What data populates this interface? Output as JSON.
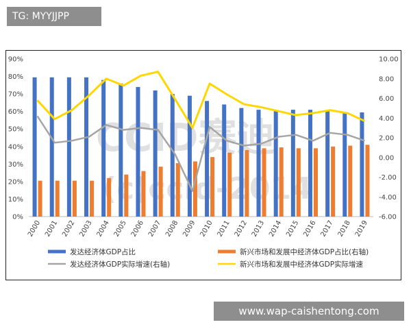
{
  "tags": {
    "top": "TG: MYYJJPP",
    "bottom": "www.wap-caishentong.com"
  },
  "watermark": [
    "CCID赛迪",
    "(c)ccid-2014"
  ],
  "chart_data": {
    "type": "bar",
    "categories": [
      "2000",
      "2001",
      "2002",
      "2003",
      "2004",
      "2005",
      "2006",
      "2007",
      "2008",
      "2009",
      "2010",
      "2011",
      "2012",
      "2013",
      "2014",
      "2015",
      "2016",
      "2017",
      "2018",
      "2019"
    ],
    "left_axis": {
      "min": 0,
      "max": 90,
      "step": 10,
      "format": "percent"
    },
    "right_axis": {
      "min": -6,
      "max": 10,
      "step": 2,
      "format": "fixed2"
    },
    "series": [
      {
        "name": "发达经济体GDP占比",
        "type": "bar",
        "axis": "left",
        "color": "#4472c4",
        "values": [
          79.5,
          79.5,
          79.5,
          79.5,
          78,
          76,
          74,
          72,
          70,
          69,
          66,
          64,
          62,
          61,
          60.5,
          61,
          61,
          60.5,
          59.5,
          59.5
        ]
      },
      {
        "name": "新兴市场和发展中经济体GDP占比(右轴)",
        "type": "bar",
        "axis": "left",
        "color": "#ed7d31",
        "values": [
          20.5,
          20.5,
          20.5,
          20.5,
          22,
          24,
          26,
          28.5,
          30.5,
          31.5,
          34,
          36.5,
          38,
          39,
          39.5,
          39,
          39,
          40,
          40.5,
          41
        ]
      },
      {
        "name": "发达经济体GDP实际增速(右轴)",
        "type": "line",
        "axis": "right",
        "color": "#a5a5a5",
        "values": [
          4.2,
          1.5,
          1.7,
          2.1,
          3.3,
          2.8,
          3.0,
          2.8,
          0.3,
          -3.4,
          3.1,
          1.7,
          1.2,
          1.4,
          2.1,
          2.3,
          1.7,
          2.5,
          2.3,
          1.7
        ]
      },
      {
        "name": "新兴市场和发展中经济体GDP实际增速",
        "type": "line",
        "axis": "right",
        "color": "#ffd700",
        "values": [
          5.8,
          3.9,
          4.8,
          6.3,
          8.0,
          7.3,
          8.3,
          8.7,
          5.9,
          3.0,
          7.5,
          6.4,
          5.4,
          5.1,
          4.7,
          4.3,
          4.5,
          4.8,
          4.5,
          3.7
        ]
      }
    ],
    "legend_position": "bottom",
    "grid": false
  }
}
